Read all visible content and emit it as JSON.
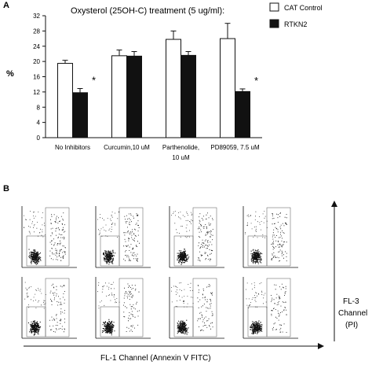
{
  "panel_labels": {
    "a": "A",
    "b": "B"
  },
  "chart_data": [
    {
      "type": "bar",
      "title": "Oxysterol (25OH-C) treatment (5 ug/ml):",
      "ylabel": "%",
      "ylim": [
        0,
        32
      ],
      "yticks": [
        0,
        4,
        8,
        12,
        16,
        20,
        24,
        28,
        32
      ],
      "ytick_labels": [
        "0",
        "4",
        "8",
        "12",
        "16",
        "20",
        "24",
        "28",
        "32"
      ],
      "categories": [
        [
          "No Inhibitors"
        ],
        [
          "Curcumin,10 uM"
        ],
        [
          "Parthenolide,",
          "10 uM"
        ],
        [
          "PD89059, 7.5 uM"
        ]
      ],
      "series": [
        {
          "name": "CAT Control",
          "color": "#ffffff",
          "values": [
            19.5,
            21.5,
            25.8,
            26.0
          ],
          "errors": [
            0.8,
            1.5,
            2.2,
            4.0
          ]
        },
        {
          "name": "RTKN2",
          "color": "#111111",
          "values": [
            11.8,
            21.4,
            21.6,
            12.1
          ],
          "errors": [
            1.1,
            1.2,
            1.0,
            0.7
          ]
        }
      ],
      "significance": [
        {
          "category": 0,
          "series": 1,
          "label": "*"
        },
        {
          "category": 3,
          "series": 1,
          "label": "*"
        }
      ],
      "legend_position": "top-right",
      "grid": false
    },
    {
      "type": "scatter",
      "description_free": true,
      "layout": "2 rows x 4 columns",
      "xlabel": "FL-1 Channel (Annexin V FITC)",
      "ylabel": [
        "FL-3",
        "Channel",
        "(PI)"
      ],
      "grid": false
    }
  ]
}
